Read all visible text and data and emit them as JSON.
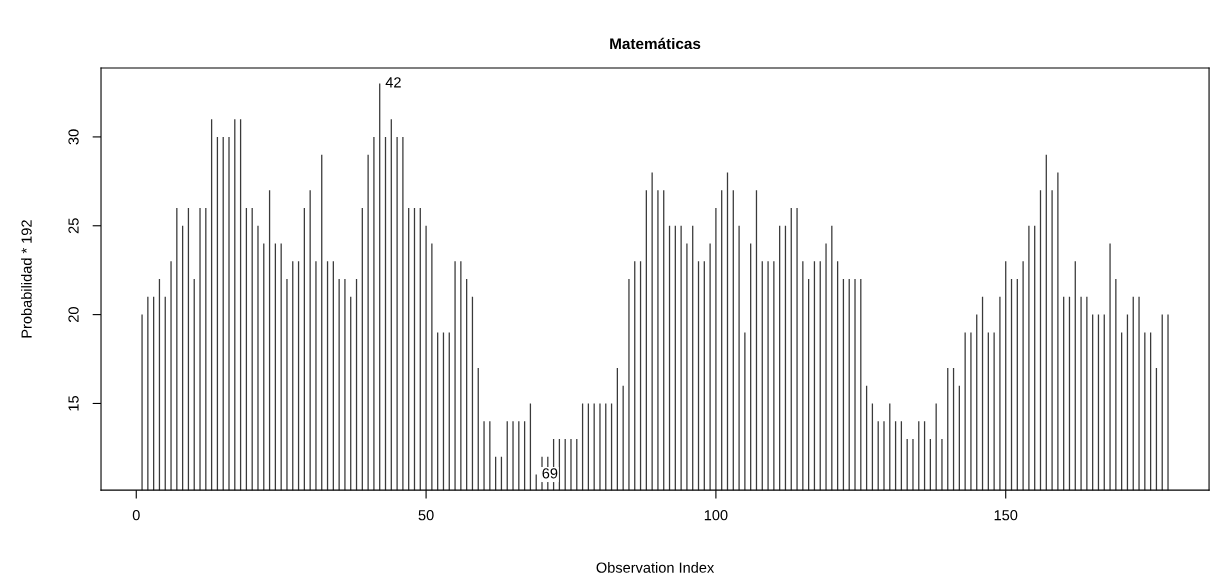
{
  "chart_data": {
    "type": "bar",
    "title": "Matemáticas",
    "xlabel": "Observation Index",
    "ylabel": "Probabilidad * 192",
    "x": [
      1,
      2,
      3,
      4,
      5,
      6,
      7,
      8,
      9,
      10,
      11,
      12,
      13,
      14,
      15,
      16,
      17,
      18,
      19,
      20,
      21,
      22,
      23,
      24,
      25,
      26,
      27,
      28,
      29,
      30,
      31,
      32,
      33,
      34,
      35,
      36,
      37,
      38,
      39,
      40,
      41,
      42,
      43,
      44,
      45,
      46,
      47,
      48,
      49,
      50,
      51,
      52,
      53,
      54,
      55,
      56,
      57,
      58,
      59,
      60,
      61,
      62,
      63,
      64,
      65,
      66,
      67,
      68,
      69,
      70,
      71,
      72,
      73,
      74,
      75,
      76,
      77,
      78,
      79,
      80,
      81,
      82,
      83,
      84,
      85,
      86,
      87,
      88,
      89,
      90,
      91,
      92,
      93,
      94,
      95,
      96,
      97,
      98,
      99,
      100,
      101,
      102,
      103,
      104,
      105,
      106,
      107,
      108,
      109,
      110,
      111,
      112,
      113,
      114,
      115,
      116,
      117,
      118,
      119,
      120,
      121,
      122,
      123,
      124,
      125,
      126,
      127,
      128,
      129,
      130,
      131,
      132,
      133,
      134,
      135,
      136,
      137,
      138,
      139,
      140,
      141,
      142,
      143,
      144,
      145,
      146,
      147,
      148,
      149,
      150,
      151,
      152,
      153,
      154,
      155,
      156,
      157,
      158,
      159,
      160,
      161,
      162,
      163,
      164,
      165,
      166,
      167,
      168,
      169,
      170,
      171,
      172,
      173,
      174,
      175,
      176,
      177,
      178
    ],
    "values": [
      20,
      21,
      21,
      22,
      21,
      23,
      26,
      25,
      26,
      22,
      26,
      26,
      31,
      30,
      30,
      30,
      31,
      31,
      26,
      26,
      25,
      24,
      27,
      24,
      24,
      22,
      23,
      23,
      26,
      27,
      23,
      29,
      23,
      23,
      22,
      22,
      21,
      22,
      26,
      29,
      30,
      33,
      30,
      31,
      30,
      30,
      26,
      26,
      26,
      25,
      24,
      19,
      19,
      19,
      23,
      23,
      22,
      21,
      17,
      14,
      14,
      12,
      12,
      14,
      14,
      14,
      14,
      15,
      11,
      12,
      12,
      13,
      13,
      13,
      13,
      13,
      15,
      15,
      15,
      15,
      15,
      15,
      17,
      16,
      22,
      23,
      23,
      27,
      28,
      27,
      27,
      25,
      25,
      25,
      24,
      25,
      23,
      23,
      24,
      26,
      27,
      28,
      27,
      25,
      19,
      24,
      27,
      23,
      23,
      23,
      25,
      25,
      26,
      26,
      23,
      22,
      23,
      23,
      24,
      25,
      23,
      22,
      22,
      22,
      22,
      16,
      15,
      14,
      14,
      15,
      14,
      14,
      13,
      13,
      14,
      14,
      13,
      15,
      13,
      17,
      17,
      16,
      19,
      19,
      20,
      21,
      19,
      19,
      21,
      23,
      22,
      22,
      23,
      25,
      25,
      27,
      29,
      27,
      28,
      21,
      21,
      23,
      21,
      21,
      20,
      20,
      20,
      24,
      22,
      19,
      20,
      21,
      21,
      19,
      19,
      17,
      20,
      20
    ],
    "color": "#3a3a3a",
    "xlim": [
      -6.08,
      185.08
    ],
    "ylim": [
      10.12,
      33.88
    ],
    "xticks": [
      0,
      50,
      100,
      150
    ],
    "yticks": [
      15,
      20,
      25,
      30
    ],
    "annotations": [
      {
        "text": "42",
        "x": 42,
        "y": 33
      },
      {
        "text": "69",
        "x": 69,
        "y": 11
      }
    ],
    "grid": false
  }
}
